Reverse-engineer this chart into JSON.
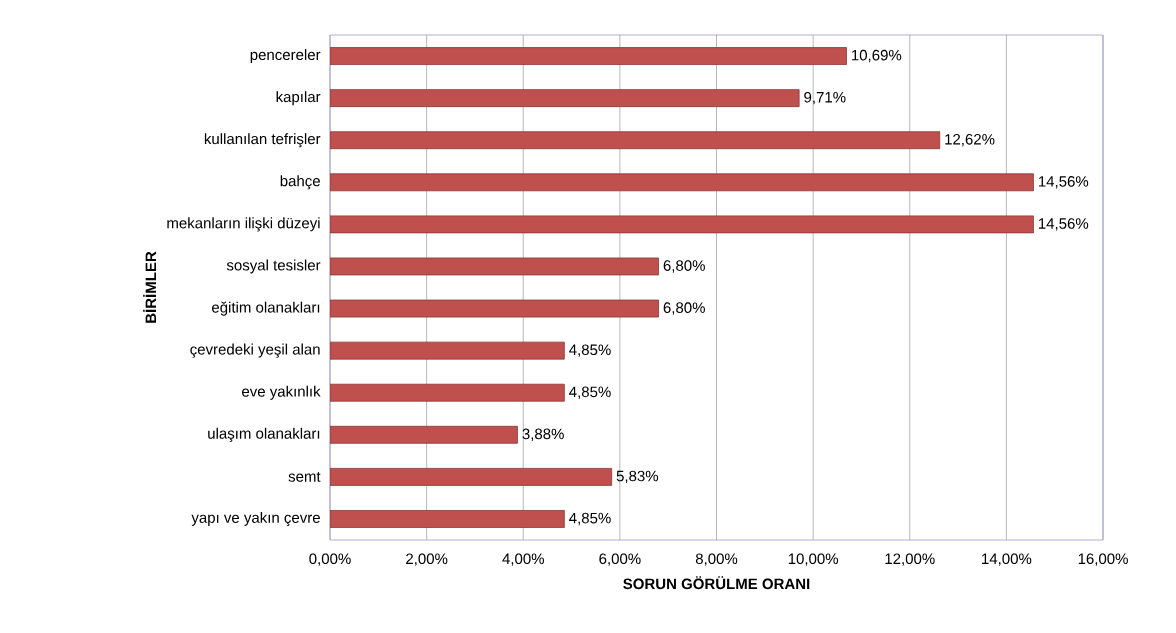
{
  "chart_data": {
    "type": "bar",
    "orientation": "horizontal",
    "xlabel": "SORUN GÖRÜLME ORANI",
    "ylabel": "BİRİMLER",
    "categories": [
      "pencereler",
      "kapılar",
      "kullanılan tefrişler",
      "bahçe",
      "mekanların ilişki düzeyi",
      "sosyal tesisler",
      "eğitim olanakları",
      "çevredeki yeşil alan",
      "eve yakınlık",
      "ulaşım olanakları",
      "semt",
      "yapı ve yakın çevre"
    ],
    "values": [
      10.69,
      9.71,
      12.62,
      14.56,
      14.56,
      6.8,
      6.8,
      4.85,
      4.85,
      3.88,
      5.83,
      4.85
    ],
    "value_labels": [
      "10,69%",
      "9,71%",
      "12,62%",
      "14,56%",
      "14,56%",
      "6,80%",
      "6,80%",
      "4,85%",
      "4,85%",
      "3,88%",
      "5,83%",
      "4,85%"
    ],
    "color": "#c0504d",
    "xlim": [
      0,
      16
    ],
    "xticks": [
      {
        "value": 0,
        "label": "0,00%"
      },
      {
        "value": 2,
        "label": "2,00%"
      },
      {
        "value": 4,
        "label": "4,00%"
      },
      {
        "value": 6,
        "label": "6,00%"
      },
      {
        "value": 8,
        "label": "8,00%"
      },
      {
        "value": 10,
        "label": "10,00%"
      },
      {
        "value": 12,
        "label": "12,00%"
      },
      {
        "value": 14,
        "label": "14,00%"
      },
      {
        "value": 16,
        "label": "16,00%"
      }
    ],
    "grid": "x"
  }
}
